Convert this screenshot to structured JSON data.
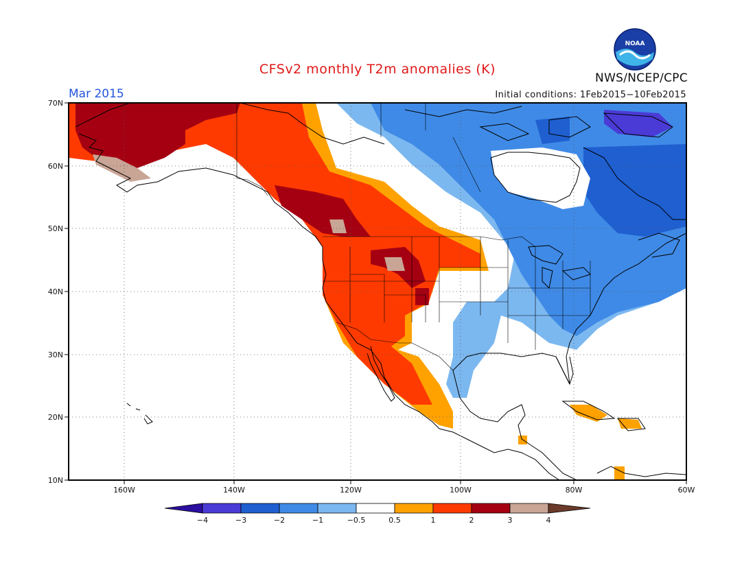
{
  "header": {
    "title": "CFSv2 monthly T2m anomalies (K)",
    "organization": "NWS/NCEP/CPC",
    "logo_text": "NOAA",
    "month": "Mar 2015",
    "initial_conditions": "Initial conditions: 1Feb2015−10Feb2015"
  },
  "map": {
    "lon_labels": [
      "160W",
      "140W",
      "120W",
      "100W",
      "80W",
      "60W"
    ],
    "lat_labels": [
      "70N",
      "60N",
      "50N",
      "40N",
      "30N",
      "20N",
      "10N"
    ],
    "lon_range": [
      -172,
      -60
    ],
    "lat_range": [
      10,
      70
    ]
  },
  "colorbar": {
    "labels": [
      "−4",
      "−3",
      "−2",
      "−1",
      "−0.5",
      "0.5",
      "1",
      "2",
      "3",
      "4"
    ],
    "colors": [
      "#2a0fa0",
      "#4a3bd6",
      "#1f5fd0",
      "#3f8ae6",
      "#7cb8f0",
      "#ffffff",
      "#ffa200",
      "#ff3a00",
      "#a50012",
      "#c9a596",
      "#6b3a2a"
    ]
  },
  "colors": {
    "title": "#e01818",
    "month": "#2255dd",
    "land_outline": "#000000"
  }
}
